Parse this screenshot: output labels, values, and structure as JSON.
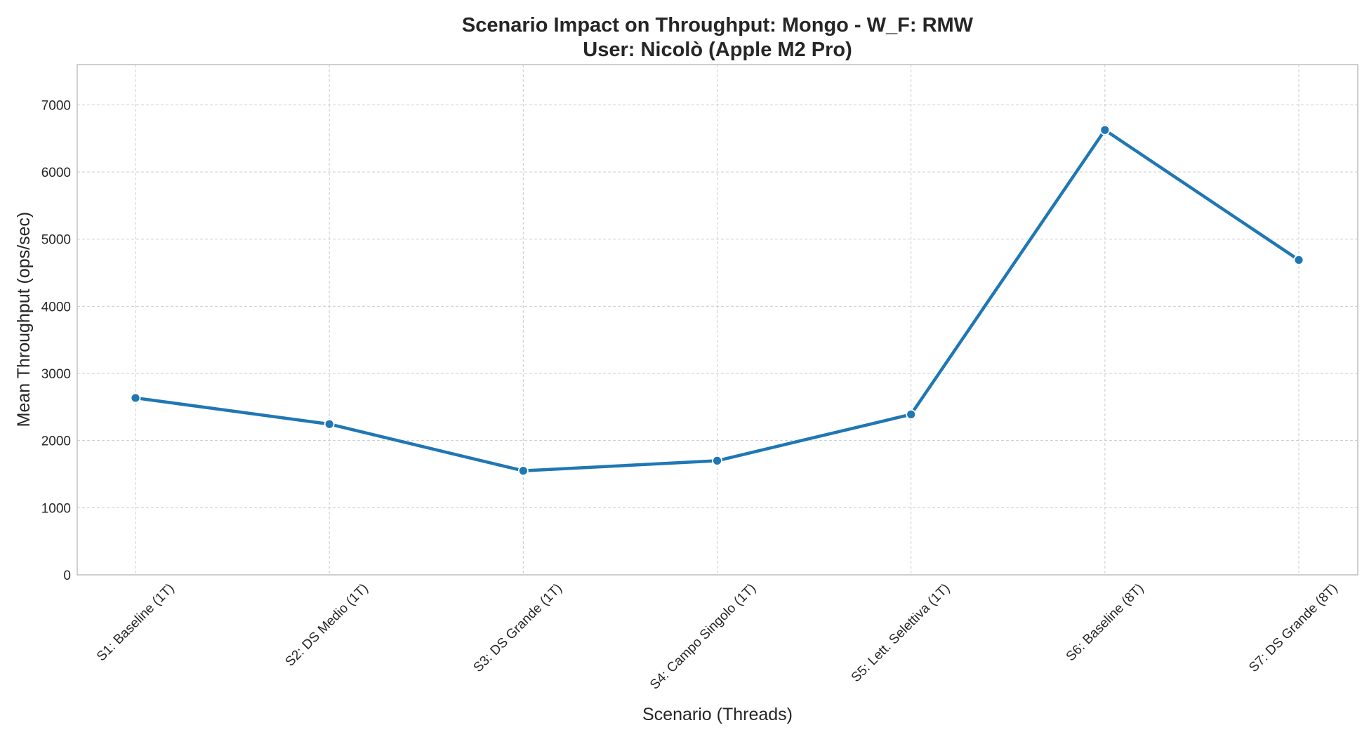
{
  "chart_data": {
    "type": "line",
    "title": "Scenario Impact on Throughput: Mongo - W_F: RMW",
    "subtitle": "User: Nicolò (Apple M2 Pro)",
    "xlabel": "Scenario (Threads)",
    "ylabel": "Mean Throughput (ops/sec)",
    "categories": [
      "S1: Baseline (1T)",
      "S2: DS Medio (1T)",
      "S3: DS Grande (1T)",
      "S4: Campo Singolo (1T)",
      "S5: Lett. Selettiva (1T)",
      "S6: Baseline (8T)",
      "S7: DS Grande (8T)"
    ],
    "series": [
      {
        "values": [
          2635,
          2245,
          1550,
          1700,
          2390,
          6625,
          4690
        ]
      }
    ],
    "ylim": [
      0,
      7600
    ],
    "yticks": [
      0,
      1000,
      2000,
      3000,
      4000,
      5000,
      6000,
      7000
    ],
    "grid": true,
    "line_color": "#1f77b4",
    "grid_color": "#cccccc",
    "spine_color": "#bfbfbf"
  }
}
